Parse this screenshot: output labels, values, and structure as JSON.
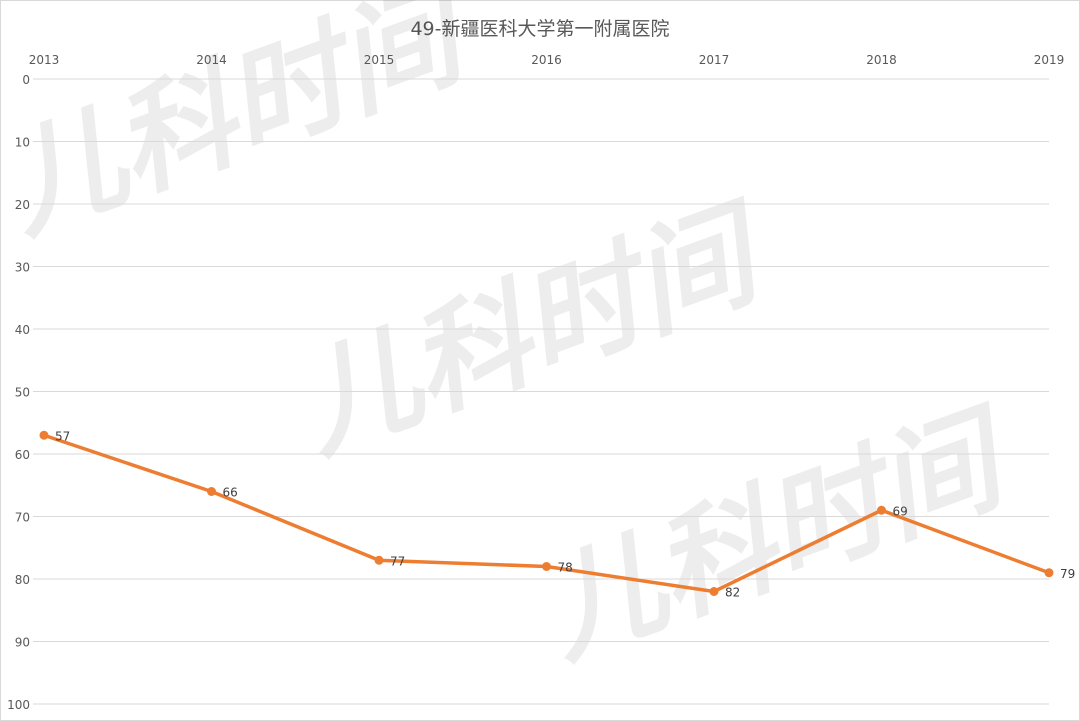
{
  "chart_data": {
    "type": "line",
    "title": "49-新疆医科大学第一附属医院",
    "categories": [
      "2013",
      "2014",
      "2015",
      "2016",
      "2017",
      "2018",
      "2019"
    ],
    "series": [
      {
        "values": [
          57,
          66,
          77,
          78,
          82,
          69,
          79
        ],
        "color": "#ED7D31"
      }
    ],
    "data_labels": [
      "57",
      "66",
      "77",
      "78",
      "82",
      "69",
      "79"
    ],
    "y_axis": {
      "reversed": true,
      "ylim": [
        0,
        100
      ],
      "ticks": [
        "0",
        "10",
        "20",
        "30",
        "40",
        "50",
        "60",
        "70",
        "80",
        "90",
        "100"
      ]
    },
    "x_axis_position": "top",
    "grid": true,
    "legend": "none"
  },
  "watermark": "儿科时间"
}
